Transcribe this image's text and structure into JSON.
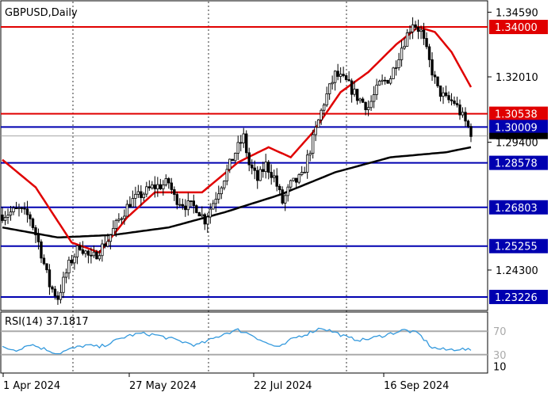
{
  "chart_data": [
    {
      "type": "candlestick",
      "title": "GBPUSD,Daily",
      "ylim": [
        1.2275,
        1.3495
      ],
      "y_tick_labels": [
        "1.34590",
        "1.32010",
        "1.29400",
        "1.24300"
      ],
      "x_tick_labels": [
        "1 Apr 2024",
        "27 May 2024",
        "22 Jul 2024",
        "16 Sep 2024"
      ],
      "grid": true,
      "horizontal_levels": [
        {
          "value": 1.34,
          "label": "1.34000",
          "color": "#e00000"
        },
        {
          "value": 1.30538,
          "label": "1.30538",
          "color": "#e00000"
        },
        {
          "value": 1.30009,
          "label": "1.30009",
          "color": "#0000b0"
        },
        {
          "value": 1.28578,
          "label": "1.28578",
          "color": "#0000b0"
        },
        {
          "value": 1.26803,
          "label": "1.26803",
          "color": "#0000b0"
        },
        {
          "value": 1.25255,
          "label": "1.25255",
          "color": "#0000b0"
        },
        {
          "value": 1.23226,
          "label": "1.23226",
          "color": "#0000b0"
        }
      ],
      "price_path": [
        [
          0,
          1.265
        ],
        [
          6,
          1.267
        ],
        [
          10,
          1.264
        ],
        [
          13,
          1.254
        ],
        [
          17,
          1.237
        ],
        [
          20,
          1.232
        ],
        [
          24,
          1.245
        ],
        [
          28,
          1.253
        ],
        [
          32,
          1.247
        ],
        [
          35,
          1.251
        ],
        [
          38,
          1.255
        ],
        [
          42,
          1.263
        ],
        [
          46,
          1.27
        ],
        [
          50,
          1.273
        ],
        [
          54,
          1.276
        ],
        [
          58,
          1.277
        ],
        [
          60,
          1.278
        ],
        [
          62,
          1.272
        ],
        [
          66,
          1.269
        ],
        [
          70,
          1.268
        ],
        [
          73,
          1.263
        ],
        [
          76,
          1.27
        ],
        [
          80,
          1.28
        ],
        [
          84,
          1.29
        ],
        [
          87,
          1.296
        ],
        [
          89,
          1.285
        ],
        [
          92,
          1.279
        ],
        [
          95,
          1.285
        ],
        [
          98,
          1.28
        ],
        [
          101,
          1.27
        ],
        [
          104,
          1.277
        ],
        [
          108,
          1.28
        ],
        [
          112,
          1.295
        ],
        [
          116,
          1.31
        ],
        [
          120,
          1.321
        ],
        [
          124,
          1.318
        ],
        [
          128,
          1.312
        ],
        [
          132,
          1.308
        ],
        [
          136,
          1.317
        ],
        [
          140,
          1.32
        ],
        [
          144,
          1.332
        ],
        [
          148,
          1.342
        ],
        [
          151,
          1.338
        ],
        [
          154,
          1.326
        ],
        [
          157,
          1.315
        ],
        [
          160,
          1.311
        ],
        [
          163,
          1.31
        ],
        [
          166,
          1.304
        ],
        [
          169,
          1.298
        ]
      ],
      "sma_fast_path": [
        [
          0,
          1.287
        ],
        [
          12,
          1.276
        ],
        [
          25,
          1.254
        ],
        [
          35,
          1.25
        ],
        [
          45,
          1.264
        ],
        [
          55,
          1.274
        ],
        [
          62,
          1.274
        ],
        [
          72,
          1.274
        ],
        [
          85,
          1.286
        ],
        [
          96,
          1.292
        ],
        [
          104,
          1.288
        ],
        [
          112,
          1.298
        ],
        [
          122,
          1.314
        ],
        [
          132,
          1.322
        ],
        [
          142,
          1.333
        ],
        [
          150,
          1.34
        ],
        [
          156,
          1.338
        ],
        [
          162,
          1.33
        ],
        [
          169,
          1.316
        ]
      ],
      "sma_slow_path": [
        [
          0,
          1.26
        ],
        [
          20,
          1.256
        ],
        [
          40,
          1.257
        ],
        [
          60,
          1.26
        ],
        [
          80,
          1.266
        ],
        [
          100,
          1.273
        ],
        [
          120,
          1.282
        ],
        [
          140,
          1.288
        ],
        [
          160,
          1.29
        ],
        [
          169,
          1.292
        ]
      ]
    },
    {
      "type": "line",
      "title": "RSI(14) 37.1817",
      "y_tick_labels": [
        "70",
        "30",
        "10"
      ],
      "levels": [
        70,
        30
      ],
      "ylim": [
        0,
        100
      ],
      "x": [
        0,
        5,
        10,
        15,
        20,
        25,
        30,
        35,
        40,
        45,
        50,
        55,
        60,
        65,
        70,
        75,
        80,
        85,
        90,
        95,
        100,
        105,
        110,
        115,
        120,
        125,
        130,
        135,
        140,
        145,
        150,
        155,
        160,
        165,
        169
      ],
      "values": [
        42,
        38,
        48,
        40,
        32,
        40,
        46,
        43,
        52,
        62,
        66,
        64,
        58,
        52,
        46,
        55,
        66,
        72,
        64,
        50,
        42,
        58,
        66,
        76,
        68,
        58,
        55,
        60,
        66,
        72,
        66,
        42,
        38,
        40,
        37
      ]
    }
  ],
  "colors": {
    "fast_ma": "#e00000",
    "slow_ma": "#000000",
    "rsi_line": "#3399dd",
    "blue_level": "#0000b0",
    "red_level": "#e00000",
    "candle_up": "#000000",
    "candle_down": "#000000"
  }
}
